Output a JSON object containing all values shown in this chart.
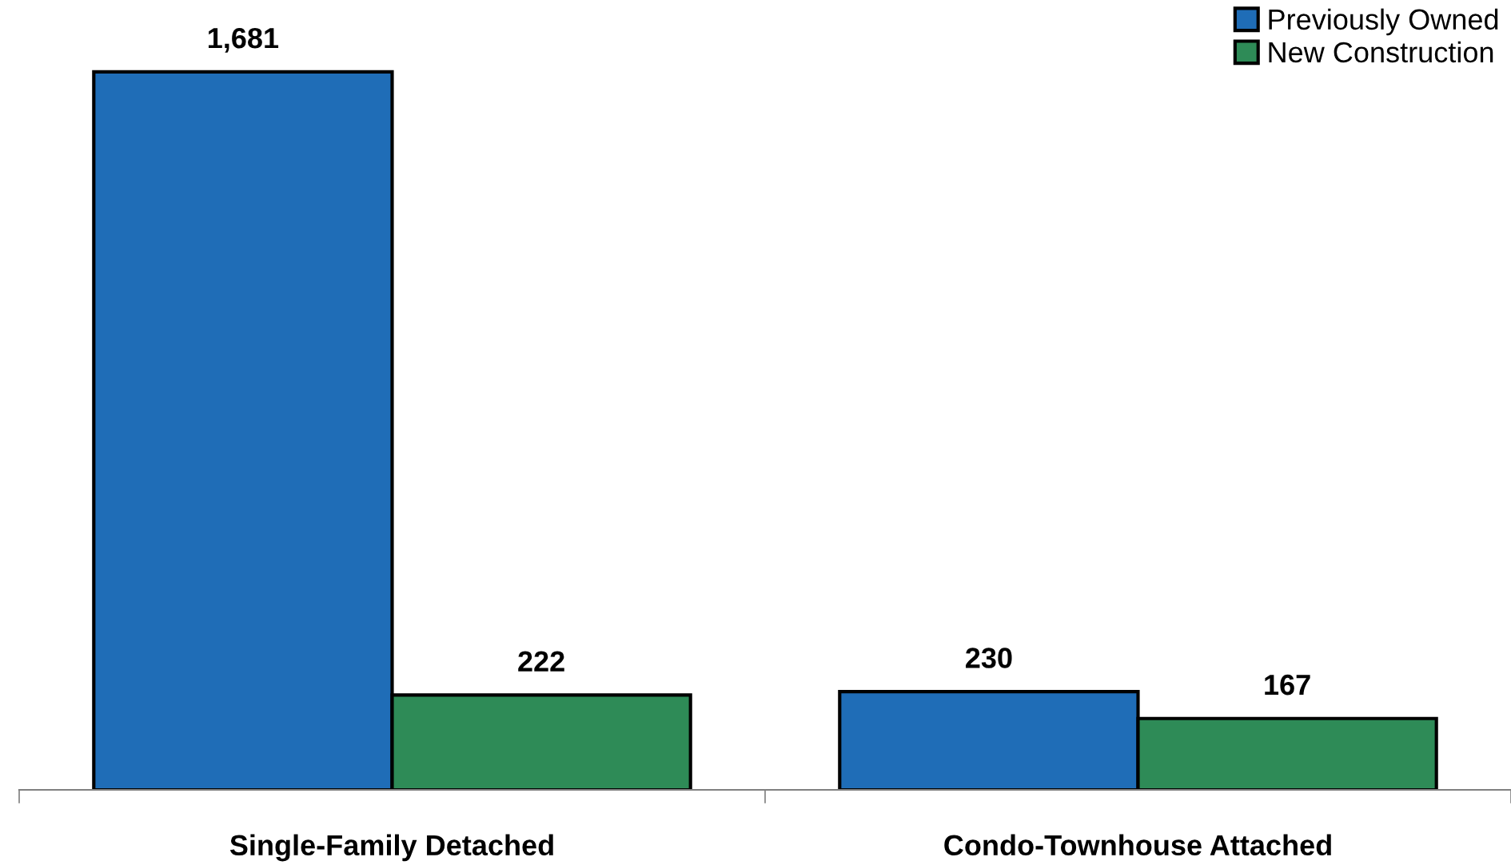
{
  "chart_data": {
    "type": "bar",
    "categories": [
      "Single-Family Detached",
      "Condo-Townhouse Attached"
    ],
    "series": [
      {
        "name": "Previously Owned",
        "color": "#1f6db7",
        "values": [
          1681,
          230
        ],
        "value_labels": [
          "1,681",
          "230"
        ]
      },
      {
        "name": "New Construction",
        "color": "#2e8b57",
        "values": [
          222,
          167
        ],
        "value_labels": [
          "222",
          "167"
        ]
      }
    ],
    "legend": "top right",
    "grid": false
  }
}
